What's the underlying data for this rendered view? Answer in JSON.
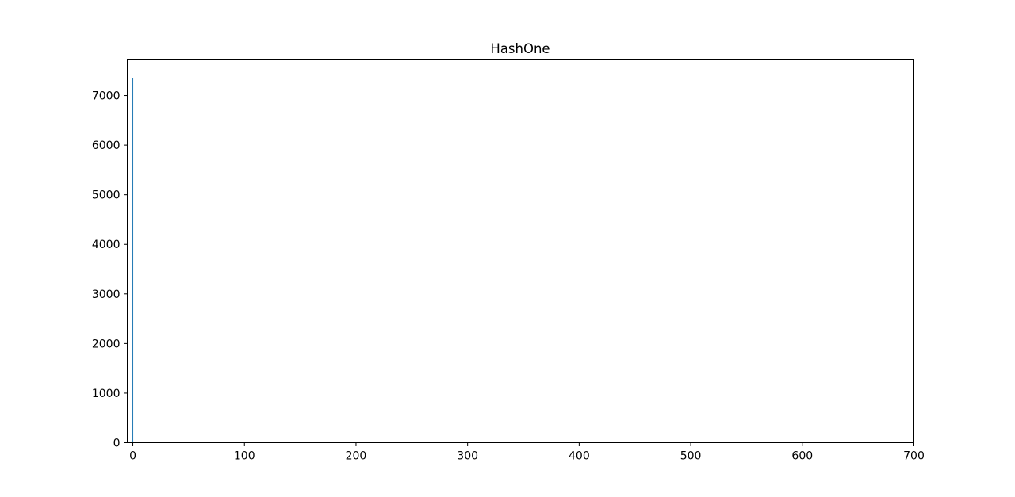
{
  "chart_data": {
    "type": "bar",
    "title": "HashOne",
    "xlabel": "",
    "ylabel": "",
    "xlim": [
      -5,
      700
    ],
    "ylim": [
      0,
      7720
    ],
    "grid": false,
    "legend": "none",
    "bar_color": "#1f77b4",
    "x_ticks": [
      0,
      100,
      200,
      300,
      400,
      500,
      600,
      700
    ],
    "y_ticks": [
      0,
      1000,
      2000,
      3000,
      4000,
      5000,
      6000,
      7000
    ],
    "x": [
      0
    ],
    "values": [
      7350
    ]
  }
}
